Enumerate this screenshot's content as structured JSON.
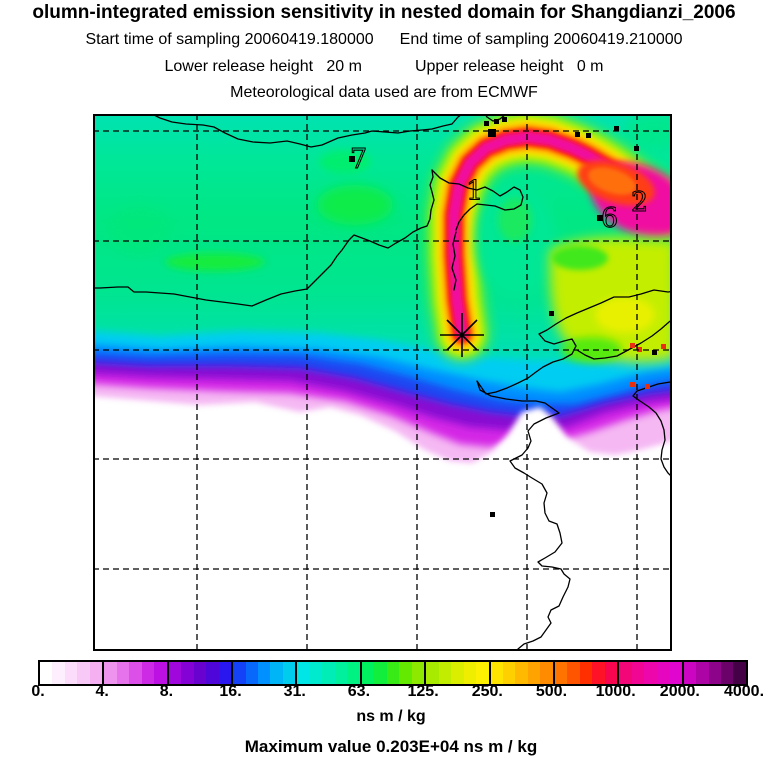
{
  "header": {
    "title": "olumn-integrated emission sensitivity in nested domain for Shangdianzi_2006",
    "sampling_start": "Start time of sampling 20060419.180000",
    "sampling_end": "End time of sampling 20060419.210000",
    "release_lower": "Lower release height   20 m",
    "release_upper": "Upper release height   0 m",
    "meteo": "Meteorological data used are from ECMWF"
  },
  "map": {
    "station_labels": [
      {
        "text": "7"
      },
      {
        "text": "1"
      },
      {
        "text": "6"
      },
      {
        "text": "2"
      }
    ]
  },
  "colorbar": {
    "ticks": [
      "0.",
      "4.",
      "8.",
      "16.",
      "31.",
      "63.",
      "125.",
      "250.",
      "500.",
      "1000.",
      "2000.",
      "4000."
    ],
    "units": "ns m / kg",
    "segments": [
      [
        "#ffffff",
        "#fdeffd",
        "#fbdcfa",
        "#f8c8f6",
        "#f4b0f1"
      ],
      [
        "#ee94ee",
        "#e673ec",
        "#dc50e9",
        "#cd2ae5",
        "#bd10e2"
      ],
      [
        "#a007dd",
        "#8502d6",
        "#6a02cf",
        "#4f06d8",
        "#2a16ee"
      ],
      [
        "#1442f6",
        "#0768fb",
        "#0090ff",
        "#00b4f8",
        "#00cdee"
      ],
      [
        "#00e6e6",
        "#00ead0",
        "#00edb8",
        "#00f09e",
        "#00f283"
      ],
      [
        "#00f160",
        "#12ee3c",
        "#38ea16",
        "#64e900",
        "#8ee900"
      ],
      [
        "#a8ea00",
        "#c2ec00",
        "#dcee00",
        "#f0ee00",
        "#fdf000"
      ],
      [
        "#ffe400",
        "#ffd000",
        "#ffba00",
        "#ffa300",
        "#ff8c00"
      ],
      [
        "#ff7300",
        "#ff5400",
        "#ff2f00",
        "#fd1226",
        "#f7064f"
      ],
      [
        "#f30677",
        "#f00693",
        "#ec06ab",
        "#e706c0",
        "#e006d0"
      ],
      [
        "#cc05c3",
        "#ad04a6",
        "#8d0389",
        "#6a026a",
        "#440146"
      ]
    ]
  },
  "footer": {
    "max_value_line": "Maximum value  0.203E+04 ns m / kg"
  },
  "chart_data": {
    "type": "heatmap",
    "subtype": "filled-contour-geographic-map",
    "title": "olumn-integrated emission sensitivity in nested domain for Shangdianzi_2006",
    "station": "Shangdianzi",
    "sampling_start": "20060419.180000",
    "sampling_end": "20060419.210000",
    "lower_release_height_m": 20,
    "upper_release_height_m": 0,
    "meteorological_data_source": "ECMWF",
    "units": "ns m / kg",
    "contour_levels": [
      0,
      4,
      8,
      16,
      31,
      63,
      125,
      250,
      500,
      1000,
      2000,
      4000
    ],
    "max_value": "0.203E+04",
    "max_value_numeric": 2030,
    "legend_position": "bottom",
    "grid": {
      "style": "dashed",
      "columns": 6,
      "rows": 6,
      "axis_tick_labels": "none visible"
    },
    "map_features": {
      "release_marker": "asterisk star at plume origin, lower-center of hook",
      "numbered_station_labels": [
        "1",
        "2",
        "6",
        "7"
      ],
      "city_markers": "small black squares",
      "coastlines": "Bohai-sea-area coastlines and borders, thin black lines",
      "field_description": "Hook-shaped high-sensitivity plume (magenta core ~1000-2000 ns m/kg ringed by red, orange, yellow, yellow-green) rising north from the release marker then arcing east to the right edge; broad moderate field (31-63, green/teal) over the northern half; sharp west-east gradient band cyan-blue-purple-magenta-pink along the southern edge of the field; zero sensitivity (white) across the southern third below the coast"
    }
  }
}
